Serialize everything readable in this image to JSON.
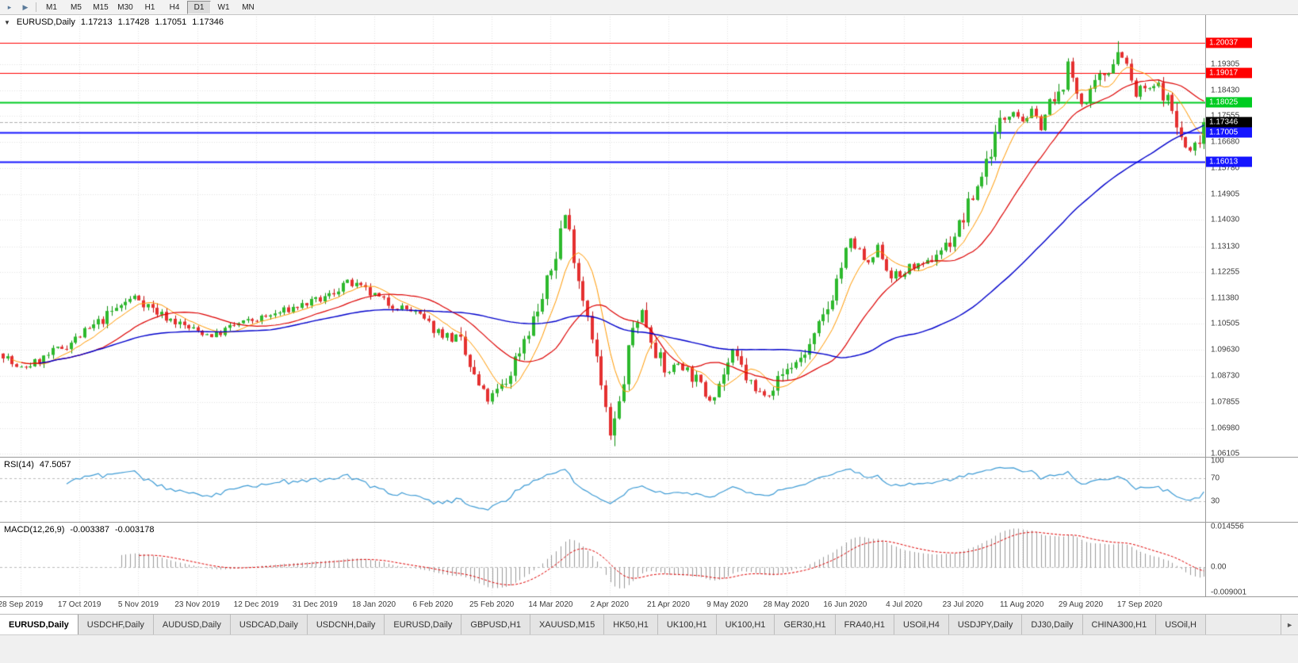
{
  "toolbar": {
    "icons": [
      {
        "name": "charts-shift-icon",
        "glyph": "▸"
      },
      {
        "name": "auto-scroll-icon",
        "glyph": "▶"
      }
    ],
    "timeframes": [
      "M1",
      "M5",
      "M15",
      "M30",
      "H1",
      "H4",
      "D1",
      "W1",
      "MN"
    ],
    "active_timeframe": "D1"
  },
  "chart": {
    "collapse_glyph": "▼",
    "symbol": "EURUSD,Daily",
    "ohlc": {
      "open": "1.17213",
      "high": "1.17428",
      "low": "1.17051",
      "close": "1.17346"
    },
    "price_axis": {
      "top_price": 1.21,
      "bottom_price": 1.06,
      "ticks": [
        "1.19305",
        "1.18430",
        "1.17555",
        "1.16680",
        "1.15780",
        "1.14905",
        "1.14030",
        "1.13130",
        "1.12255",
        "1.11380",
        "1.10505",
        "1.09630",
        "1.08730",
        "1.07855",
        "1.06980",
        "1.06105"
      ]
    },
    "hlines": [
      {
        "price": 1.20037,
        "label": "1.20037",
        "color": "#ff0000",
        "width": 1
      },
      {
        "price": 1.19017,
        "label": "1.19017",
        "color": "#ff0000",
        "width": 1
      },
      {
        "price": 1.18025,
        "label": "1.18025",
        "color": "#00cc22",
        "width": 2
      },
      {
        "price": 1.17005,
        "label": "1.17005",
        "color": "#1515ff",
        "width": 2
      },
      {
        "price": 1.16013,
        "label": "1.16013",
        "color": "#1515ff",
        "width": 2
      }
    ],
    "current_price": {
      "label": "1.17346",
      "value": 1.17346,
      "box_bg": "#000000",
      "box_fg": "#ffffff"
    },
    "colors": {
      "up": "#0e8f0e",
      "up_fill": "#2db92d",
      "down": "#c01010",
      "down_fill": "#e53030",
      "ma_fast": "#ff9900",
      "ma_mid": "#dd0000",
      "ma_slow": "#0000cc",
      "grid": "#e3e3e3",
      "bid_line": "#b0b0b0"
    }
  },
  "rsi": {
    "name": "RSI(14)",
    "value": "47.5057",
    "levels": [
      "100",
      "70",
      "30"
    ],
    "line_color": "#3d9bd5"
  },
  "macd": {
    "name": "MACD(12,26,9)",
    "value1": "-0.003387",
    "value2": "-0.003178",
    "axis_labels": [
      "0.014556",
      "0.00",
      "-0.009001"
    ],
    "range": {
      "max": 0.0152,
      "min": -0.0097
    },
    "bar_color": "#9a9a9a",
    "signal_color": "#e00000"
  },
  "date_axis": {
    "first_candle": 4,
    "candle_step": 13,
    "labels": [
      "28 Sep 2019",
      "17 Oct 2019",
      "5 Nov 2019",
      "23 Nov 2019",
      "12 Dec 2019",
      "31 Dec 2019",
      "18 Jan 2020",
      "6 Feb 2020",
      "25 Feb 2020",
      "14 Mar 2020",
      "2 Apr 2020",
      "21 Apr 2020",
      "9 May 2020",
      "28 May 2020",
      "16 Jun 2020",
      "4 Jul 2020",
      "23 Jul 2020",
      "11 Aug 2020",
      "29 Aug 2020",
      "17 Sep 2020"
    ]
  },
  "tabs": [
    {
      "label": "EURUSD,Daily",
      "active": true
    },
    {
      "label": "USDCHF,Daily"
    },
    {
      "label": "AUDUSD,Daily"
    },
    {
      "label": "USDCAD,Daily"
    },
    {
      "label": "USDCNH,Daily"
    },
    {
      "label": "EURUSD,Daily"
    },
    {
      "label": "GBPUSD,H1"
    },
    {
      "label": "XAUUSD,M15"
    },
    {
      "label": "HK50,H1"
    },
    {
      "label": "UK100,H1"
    },
    {
      "label": "UK100,H1"
    },
    {
      "label": "GER30,H1"
    },
    {
      "label": "FRA40,H1"
    },
    {
      "label": "USOil,H4"
    },
    {
      "label": "USDJPY,Daily"
    },
    {
      "label": "DJ30,Daily"
    },
    {
      "label": "CHINA300,H1"
    },
    {
      "label": "USOil,H"
    }
  ],
  "tabs_scroll": {
    "right_glyph": "►"
  },
  "chart_data": {
    "type": "candlestick",
    "symbol": "EURUSD",
    "timeframe": "Daily",
    "candle_count": 266,
    "final_close": 1.17346,
    "seed": 7,
    "forced_extremes": {
      "max_high": 1.2009,
      "min_low": 1.0636
    },
    "ma_periods": {
      "fast": 8,
      "mid": 21,
      "slow": 60
    },
    "indicators": [
      {
        "name": "RSI",
        "period": 14,
        "last_value": 47.5057
      },
      {
        "name": "MACD",
        "fast": 12,
        "slow": 26,
        "signal": 9,
        "last_macd": -0.003387,
        "last_signal": -0.003178
      }
    ],
    "horizontal_levels": [
      1.20037,
      1.19017,
      1.18025,
      1.17005,
      1.16013
    ],
    "price_path": [
      [
        0.0,
        1.095
      ],
      [
        0.012,
        1.0895
      ],
      [
        0.03,
        1.0925
      ],
      [
        0.055,
        1.0985
      ],
      [
        0.075,
        1.104
      ],
      [
        0.095,
        1.1105
      ],
      [
        0.11,
        1.1145
      ],
      [
        0.13,
        1.1085
      ],
      [
        0.155,
        1.1035
      ],
      [
        0.175,
        1.101
      ],
      [
        0.195,
        1.105
      ],
      [
        0.22,
        1.1075
      ],
      [
        0.245,
        1.111
      ],
      [
        0.27,
        1.114
      ],
      [
        0.285,
        1.1195
      ],
      [
        0.3,
        1.1165
      ],
      [
        0.32,
        1.112
      ],
      [
        0.34,
        1.1095
      ],
      [
        0.36,
        1.103
      ],
      [
        0.38,
        1.099
      ],
      [
        0.393,
        1.086
      ],
      [
        0.403,
        1.079
      ],
      [
        0.418,
        1.0845
      ],
      [
        0.433,
        1.0995
      ],
      [
        0.448,
        1.112
      ],
      [
        0.46,
        1.128
      ],
      [
        0.467,
        1.1435
      ],
      [
        0.474,
        1.132
      ],
      [
        0.481,
        1.117
      ],
      [
        0.489,
        1.106
      ],
      [
        0.498,
        1.084
      ],
      [
        0.506,
        1.066
      ],
      [
        0.514,
        1.079
      ],
      [
        0.524,
        1.103
      ],
      [
        0.531,
        1.1105
      ],
      [
        0.54,
        1.1005
      ],
      [
        0.551,
        1.088
      ],
      [
        0.563,
        1.092
      ],
      [
        0.576,
        1.0865
      ],
      [
        0.588,
        1.0795
      ],
      [
        0.598,
        1.0865
      ],
      [
        0.608,
        1.0955
      ],
      [
        0.617,
        1.0885
      ],
      [
        0.627,
        1.0815
      ],
      [
        0.639,
        1.0825
      ],
      [
        0.651,
        1.089
      ],
      [
        0.663,
        1.093
      ],
      [
        0.674,
        1.0985
      ],
      [
        0.686,
        1.1095
      ],
      [
        0.698,
        1.1245
      ],
      [
        0.706,
        1.133
      ],
      [
        0.714,
        1.1285
      ],
      [
        0.721,
        1.1245
      ],
      [
        0.729,
        1.1315
      ],
      [
        0.737,
        1.123
      ],
      [
        0.747,
        1.121
      ],
      [
        0.757,
        1.125
      ],
      [
        0.767,
        1.124
      ],
      [
        0.777,
        1.129
      ],
      [
        0.789,
        1.133
      ],
      [
        0.799,
        1.14
      ],
      [
        0.811,
        1.1515
      ],
      [
        0.821,
        1.1625
      ],
      [
        0.831,
        1.174
      ],
      [
        0.841,
        1.178
      ],
      [
        0.849,
        1.174
      ],
      [
        0.857,
        1.177
      ],
      [
        0.864,
        1.172
      ],
      [
        0.871,
        1.179
      ],
      [
        0.879,
        1.181
      ],
      [
        0.887,
        1.193
      ],
      [
        0.894,
        1.184
      ],
      [
        0.901,
        1.179
      ],
      [
        0.909,
        1.185
      ],
      [
        0.917,
        1.19
      ],
      [
        0.924,
        1.194
      ],
      [
        0.931,
        1.199
      ],
      [
        0.937,
        1.19
      ],
      [
        0.943,
        1.182
      ],
      [
        0.949,
        1.1855
      ],
      [
        0.955,
        1.184
      ],
      [
        0.961,
        1.1865
      ],
      [
        0.967,
        1.183
      ],
      [
        0.973,
        1.178
      ],
      [
        0.979,
        1.17
      ],
      [
        0.985,
        1.1645
      ],
      [
        0.99,
        1.163
      ],
      [
        0.995,
        1.1675
      ],
      [
        1.0,
        1.17346
      ]
    ]
  }
}
